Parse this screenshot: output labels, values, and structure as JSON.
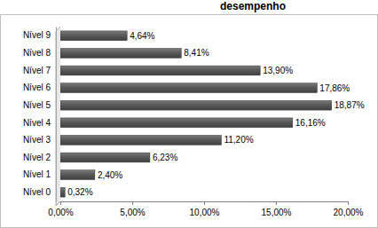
{
  "chart_data": {
    "type": "bar",
    "title": "desempenho",
    "orientation": "horizontal",
    "categories": [
      "Nível 0",
      "Nível 1",
      "Nível 2",
      "Nível 3",
      "Nível 4",
      "Nível 5",
      "Nível 6",
      "Nível 7",
      "Nível 8",
      "Nível 9"
    ],
    "values": [
      0.32,
      2.4,
      6.23,
      11.2,
      16.16,
      18.87,
      17.86,
      13.9,
      8.41,
      4.64
    ],
    "value_labels": [
      "0,32%",
      "2,40%",
      "6,23%",
      "11,20%",
      "16,16%",
      "18,87%",
      "17,86%",
      "13,90%",
      "8,41%",
      "4,64%"
    ],
    "data_labels": true,
    "color": "#595959",
    "xlim": [
      0,
      20
    ],
    "xticks": [
      {
        "value": 0,
        "label": "0,00%"
      },
      {
        "value": 5,
        "label": "5,00%"
      },
      {
        "value": 10,
        "label": "10,00%"
      },
      {
        "value": 15,
        "label": "15,00%"
      },
      {
        "value": 20,
        "label": "20,00%"
      }
    ],
    "grid": false
  }
}
